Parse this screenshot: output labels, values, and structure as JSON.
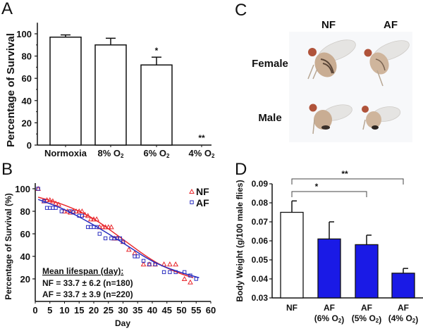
{
  "panels": {
    "A": "A",
    "B": "B",
    "C": "C",
    "D": "D"
  },
  "chart_data": [
    {
      "id": "A",
      "type": "bar",
      "title": "",
      "ylabel": "Percentage of Survival",
      "xlabel": "",
      "categories": [
        "Normoxia",
        "8% O₂",
        "6% O₂",
        "4% O₂"
      ],
      "values": [
        97,
        90,
        72,
        0
      ],
      "error_upper": [
        99,
        96,
        79,
        0
      ],
      "annotations": [
        "",
        "",
        "*",
        "**"
      ],
      "ylim": [
        0,
        110
      ],
      "yticks": [
        0,
        20,
        40,
        60,
        80,
        100
      ],
      "bar_color": "#ffffff"
    },
    {
      "id": "B",
      "type": "scatter",
      "xlabel": "Day",
      "ylabel": "Percentage of  Survival (%)",
      "xlim": [
        0,
        60
      ],
      "ylim": [
        0,
        105
      ],
      "xticks": [
        0,
        5,
        10,
        15,
        20,
        25,
        30,
        35,
        40,
        45,
        50,
        55,
        60
      ],
      "yticks": [
        20,
        40,
        60,
        80,
        100
      ],
      "legend_position": "top-right",
      "series": [
        {
          "name": "NF",
          "marker": "triangle",
          "color": "#e8262b",
          "x": [
            1,
            3,
            4,
            5,
            6,
            7,
            8,
            10,
            11,
            12,
            13,
            14,
            15,
            16,
            17,
            18,
            19,
            20,
            21,
            22,
            23,
            24,
            25,
            26,
            27,
            28,
            30,
            32,
            34,
            37,
            39,
            41,
            44,
            46,
            48,
            51,
            53
          ],
          "y": [
            100,
            89,
            90,
            90,
            89,
            87,
            86,
            80,
            80,
            79,
            80,
            80,
            80,
            80,
            77,
            76,
            73,
            73,
            73,
            66,
            66,
            66,
            66,
            66,
            56,
            56,
            53,
            46,
            43,
            33,
            33,
            33,
            33,
            33,
            33,
            20,
            17
          ],
          "fit": [
            [
              1,
              92.5
            ],
            [
              10,
              86
            ],
            [
              20,
              74
            ],
            [
              30,
              55
            ],
            [
              40,
              36
            ],
            [
              48,
              26
            ],
            [
              54,
              21
            ]
          ]
        },
        {
          "name": "AF",
          "marker": "square",
          "color": "#2a2ec0",
          "x": [
            1,
            3,
            4,
            5,
            6,
            7,
            9,
            12,
            13,
            15,
            16,
            18,
            19,
            20,
            21,
            22,
            24,
            26,
            27,
            28,
            29,
            30,
            34,
            35,
            37,
            39,
            41,
            44,
            46,
            48,
            51,
            53,
            55
          ],
          "y": [
            100,
            89,
            83,
            83,
            83,
            83,
            80,
            80,
            79,
            76,
            76,
            66,
            66,
            66,
            66,
            60,
            56,
            56,
            56,
            56,
            56,
            53,
            40,
            40,
            36,
            33,
            33,
            26,
            26,
            26,
            26,
            23,
            20
          ],
          "fit": [
            [
              1,
              90.5
            ],
            [
              10,
              82
            ],
            [
              20,
              68
            ],
            [
              30,
              52
            ],
            [
              40,
              35
            ],
            [
              48,
              27
            ],
            [
              56,
              21
            ]
          ]
        }
      ],
      "annotation": {
        "heading": "Mean lifespan (day):",
        "lines": [
          "NF = 33.7 ± 6.2 (n=180)",
          "AF = 33.7 ± 3.9 (n=220)"
        ]
      }
    },
    {
      "id": "D",
      "type": "bar",
      "ylabel": "Body Weight (g/100 male flies)",
      "xlabel": "",
      "categories": [
        "NF",
        "AF",
        "AF",
        "AF"
      ],
      "category_sublabels": [
        "",
        "(6% O₂)",
        "(5% O₂)",
        "(4% O₂)"
      ],
      "values": [
        0.075,
        0.061,
        0.058,
        0.043
      ],
      "error_upper": [
        0.081,
        0.07,
        0.063,
        0.0455
      ],
      "bar_colors": [
        "#ffffff",
        "#1a1ae6",
        "#1a1ae6",
        "#1a1ae6"
      ],
      "ylim": [
        0.03,
        0.09
      ],
      "yticks": [
        "0.03",
        "0.04",
        "0.05",
        "0.06",
        "0.07",
        "0.08",
        "0.09"
      ],
      "significance": [
        {
          "from": 0,
          "to": 2,
          "label": "*"
        },
        {
          "from": 0,
          "to": 3,
          "label": "**"
        }
      ]
    }
  ],
  "photo_panel": {
    "columns": [
      "NF",
      "AF"
    ],
    "rows": [
      "Female",
      "Male"
    ]
  }
}
